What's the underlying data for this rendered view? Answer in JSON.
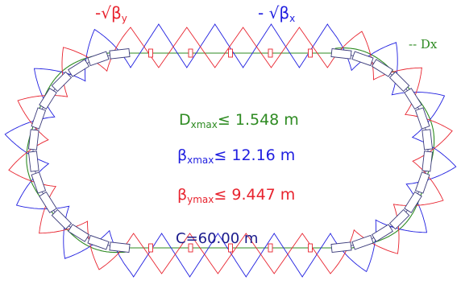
{
  "colors": {
    "red": "#e8232e",
    "blue": "#1f1ee0",
    "green": "#2e8b22",
    "navy": "#1a1a8c",
    "magnet": "#3a3a7a"
  },
  "legend": {
    "beta_y": {
      "prefix": "-√β",
      "sub": "y"
    },
    "beta_x": {
      "prefix": "- √β",
      "sub": "x"
    },
    "dx": "-- Dx"
  },
  "annotations": {
    "dispersion": {
      "symbol": "D",
      "sub": "xmax",
      "rest": "≤ 1.548 m"
    },
    "beta_x_max": {
      "symbol": "β",
      "sub": "xmax",
      "rest": "≤ 12.16 m"
    },
    "beta_y_max": {
      "symbol": "β",
      "sub": "ymax",
      "rest": "≤ 9.447 m"
    },
    "circumference": "C=60.00 m"
  }
}
